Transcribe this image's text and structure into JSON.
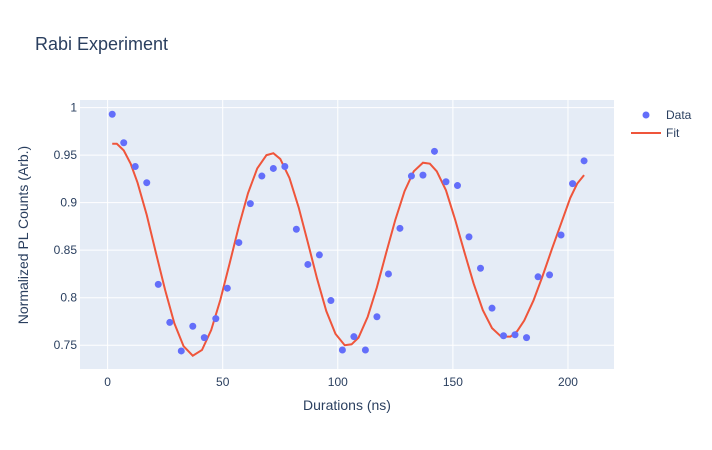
{
  "chart_data": {
    "type": "scatter",
    "title": "Rabi Experiment",
    "xlabel": "Durations (ns)",
    "ylabel": "Normalized PL Counts (Arb.)",
    "xlim": [
      -12,
      220
    ],
    "ylim": [
      0.725,
      1.008
    ],
    "xticks": [
      0,
      50,
      100,
      150,
      200
    ],
    "yticks": [
      0.75,
      0.8,
      0.85,
      0.9,
      0.95,
      1
    ],
    "ytick_labels": [
      "0.75",
      "0.8",
      "0.85",
      "0.9",
      "0.95",
      "1"
    ],
    "grid": true,
    "legend": "top-right",
    "colors": {
      "data": "#636efa",
      "fit": "#ef553b",
      "plot_bg": "#e5ecf6",
      "grid": "#ffffff",
      "text": "#2a3f5f"
    },
    "series": [
      {
        "name": "Data",
        "mode": "markers",
        "x": [
          2,
          7,
          12,
          17,
          22,
          27,
          32,
          37,
          42,
          47,
          52,
          57,
          62,
          67,
          72,
          77,
          82,
          87,
          92,
          97,
          102,
          107,
          112,
          117,
          122,
          127,
          132,
          137,
          142,
          147,
          152,
          157,
          162,
          167,
          172,
          177,
          182,
          187,
          192,
          197,
          202,
          207
        ],
        "y": [
          0.993,
          0.963,
          0.938,
          0.921,
          0.814,
          0.774,
          0.744,
          0.77,
          0.758,
          0.778,
          0.81,
          0.858,
          0.899,
          0.928,
          0.936,
          0.938,
          0.872,
          0.835,
          0.845,
          0.797,
          0.745,
          0.759,
          0.745,
          0.78,
          0.825,
          0.873,
          0.928,
          0.929,
          0.954,
          0.922,
          0.918,
          0.864,
          0.831,
          0.789,
          0.76,
          0.761,
          0.758,
          0.822,
          0.824,
          0.866,
          0.92,
          0.944
        ]
      },
      {
        "name": "Fit",
        "mode": "lines",
        "x": [
          2,
          4,
          7,
          10,
          13,
          17,
          21,
          25,
          29,
          33,
          37,
          41,
          45,
          49,
          53,
          57,
          61,
          65,
          69,
          72,
          75,
          79,
          83,
          87,
          91,
          95,
          99,
          103,
          106,
          109,
          113,
          117,
          121,
          125,
          129,
          133,
          137,
          140,
          143,
          147,
          151,
          155,
          159,
          163,
          167,
          171,
          175,
          178,
          181,
          185,
          189,
          193,
          197,
          201,
          204,
          207
        ],
        "y": [
          0.962,
          0.962,
          0.955,
          0.941,
          0.921,
          0.887,
          0.847,
          0.808,
          0.773,
          0.749,
          0.739,
          0.745,
          0.766,
          0.798,
          0.836,
          0.875,
          0.91,
          0.936,
          0.95,
          0.952,
          0.946,
          0.926,
          0.895,
          0.858,
          0.82,
          0.786,
          0.762,
          0.75,
          0.751,
          0.758,
          0.78,
          0.811,
          0.847,
          0.882,
          0.912,
          0.933,
          0.942,
          0.941,
          0.933,
          0.913,
          0.882,
          0.848,
          0.815,
          0.787,
          0.768,
          0.759,
          0.759,
          0.765,
          0.776,
          0.797,
          0.823,
          0.851,
          0.878,
          0.905,
          0.92,
          0.929
        ]
      }
    ]
  }
}
